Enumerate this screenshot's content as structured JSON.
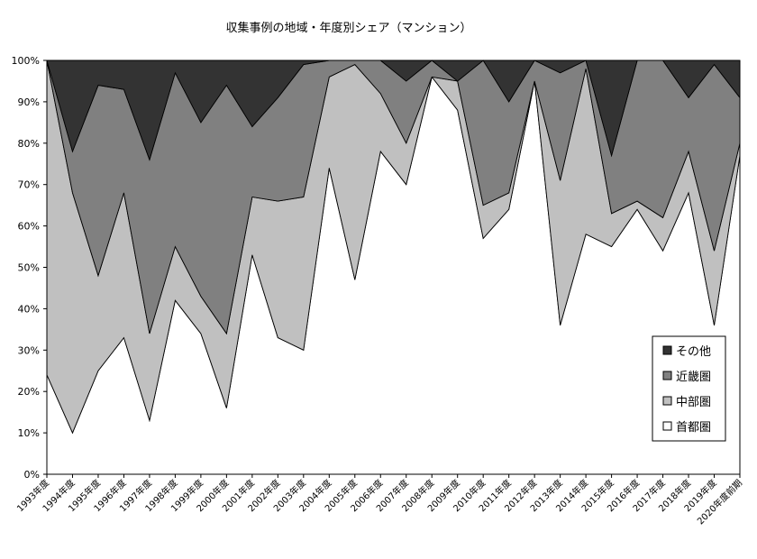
{
  "chart_data": {
    "type": "area",
    "stacked": true,
    "percent": true,
    "title": "収集事例の地域・年度別シェア（マンション）",
    "xlabel": "",
    "ylabel": "",
    "ylim": [
      0,
      100
    ],
    "y_ticks": [
      0,
      10,
      20,
      30,
      40,
      50,
      60,
      70,
      80,
      90,
      100
    ],
    "y_tick_suffix": "%",
    "grid": false,
    "legend_position": "bottom-right",
    "categories": [
      "1993年度",
      "1994年度",
      "1995年度",
      "1996年度",
      "1997年度",
      "1998年度",
      "1999年度",
      "2000年度",
      "2001年度",
      "2002年度",
      "2003年度",
      "2004年度",
      "2005年度",
      "2006年度",
      "2007年度",
      "2008年度",
      "2009年度",
      "2010年度",
      "2011年度",
      "2012年度",
      "2013年度",
      "2014年度",
      "2015年度",
      "2016年度",
      "2017年度",
      "2018年度",
      "2019年度",
      "2020年度前期"
    ],
    "series": [
      {
        "name": "首都圏",
        "color": "#ffffff",
        "values": [
          24,
          10,
          25,
          33,
          13,
          42,
          34,
          16,
          53,
          33,
          30,
          74,
          47,
          78,
          70,
          96,
          88,
          57,
          64,
          95,
          36,
          58,
          55,
          64,
          54,
          68,
          36,
          77
        ]
      },
      {
        "name": "中部圏",
        "color": "#c0c0c0",
        "values": [
          76,
          58,
          23,
          35,
          21,
          13,
          9,
          18,
          14,
          33,
          37,
          22,
          52,
          14,
          10,
          0,
          7,
          8,
          4,
          0,
          35,
          40,
          8,
          2,
          8,
          10,
          18,
          3
        ]
      },
      {
        "name": "近畿圏",
        "color": "#808080",
        "values": [
          0,
          10,
          46,
          25,
          42,
          42,
          42,
          60,
          17,
          25,
          32,
          4,
          1,
          8,
          15,
          4,
          0,
          35,
          22,
          5,
          26,
          2,
          14,
          34,
          38,
          13,
          45,
          11
        ]
      },
      {
        "name": "その他",
        "color": "#333333",
        "values": [
          0,
          22,
          6,
          7,
          24,
          3,
          15,
          6,
          16,
          9,
          1,
          0,
          0,
          0,
          5,
          0,
          5,
          0,
          10,
          0,
          3,
          0,
          23,
          0,
          0,
          9,
          1,
          9
        ]
      }
    ]
  }
}
